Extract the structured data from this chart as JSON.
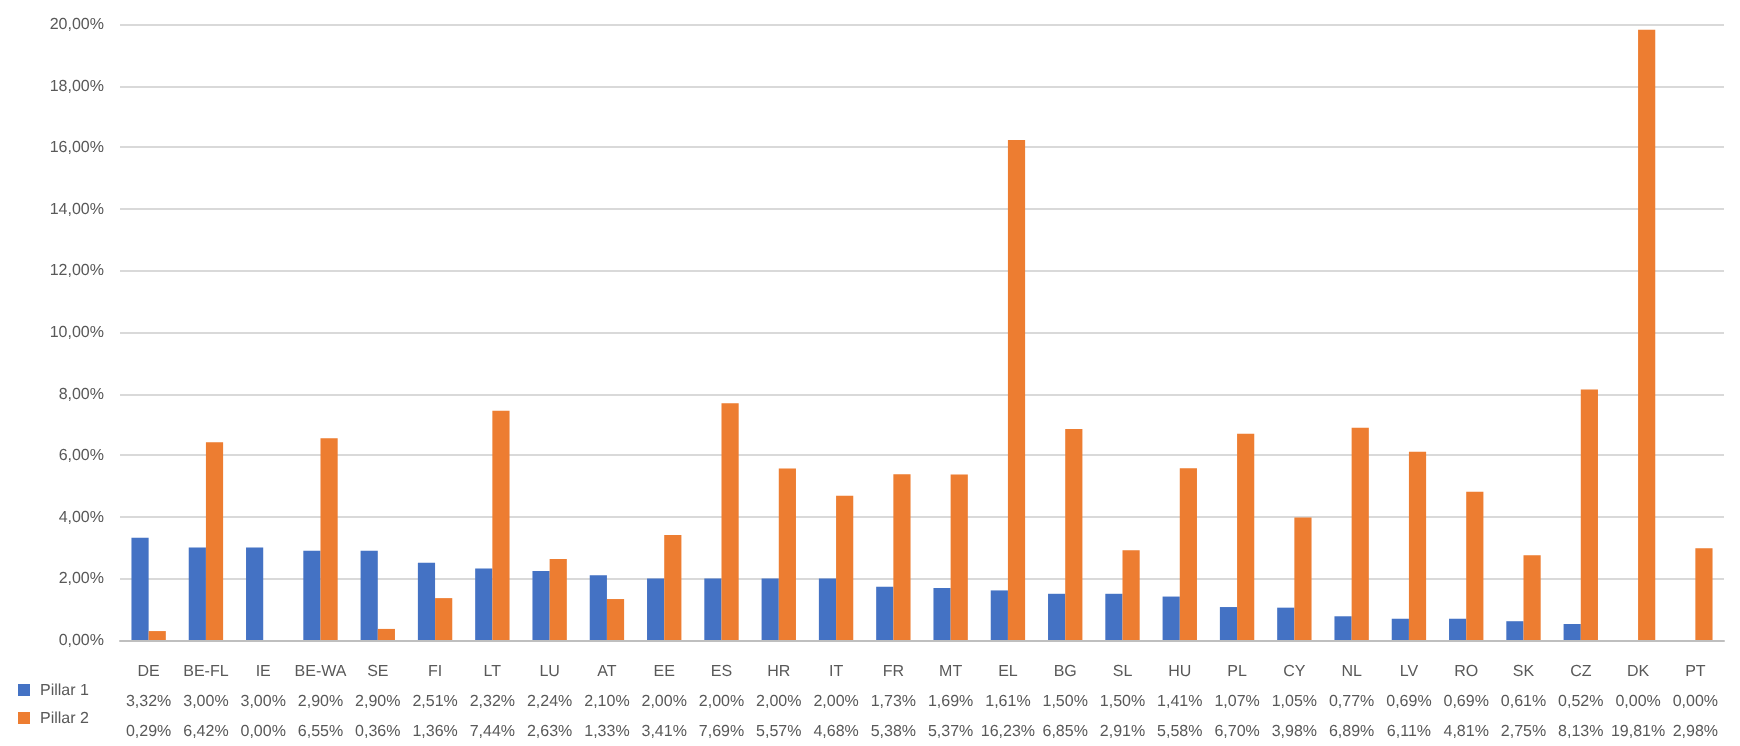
{
  "chart_data": {
    "type": "bar",
    "categories": [
      "DE",
      "BE-FL",
      "IE",
      "BE-WA",
      "SE",
      "FI",
      "LT",
      "LU",
      "AT",
      "EE",
      "ES",
      "HR",
      "IT",
      "FR",
      "MT",
      "EL",
      "BG",
      "SL",
      "HU",
      "PL",
      "CY",
      "NL",
      "LV",
      "RO",
      "SK",
      "CZ",
      "DK",
      "PT"
    ],
    "series": [
      {
        "name": "Pillar 1",
        "color": "#4472c4",
        "values": [
          3.32,
          3.0,
          3.0,
          2.9,
          2.9,
          2.51,
          2.32,
          2.24,
          2.1,
          2.0,
          2.0,
          2.0,
          2.0,
          1.73,
          1.69,
          1.61,
          1.5,
          1.5,
          1.41,
          1.07,
          1.05,
          0.77,
          0.69,
          0.69,
          0.61,
          0.52,
          0.0,
          0.0
        ],
        "value_labels": [
          "3,32%",
          "3,00%",
          "3,00%",
          "2,90%",
          "2,90%",
          "2,51%",
          "2,32%",
          "2,24%",
          "2,10%",
          "2,00%",
          "2,00%",
          "2,00%",
          "2,00%",
          "1,73%",
          "1,69%",
          "1,61%",
          "1,50%",
          "1,50%",
          "1,41%",
          "1,07%",
          "1,05%",
          "0,77%",
          "0,69%",
          "0,69%",
          "0,61%",
          "0,52%",
          "0,00%",
          "0,00%"
        ]
      },
      {
        "name": "Pillar 2",
        "color": "#ed7d31",
        "values": [
          0.29,
          6.42,
          0.0,
          6.55,
          0.36,
          1.36,
          7.44,
          2.63,
          1.33,
          3.41,
          7.69,
          5.57,
          4.68,
          5.38,
          5.37,
          16.23,
          6.85,
          2.91,
          5.58,
          6.7,
          3.98,
          6.89,
          6.11,
          4.81,
          2.75,
          8.13,
          19.81,
          2.98
        ],
        "value_labels": [
          "0,29%",
          "6,42%",
          "0,00%",
          "6,55%",
          "0,36%",
          "1,36%",
          "7,44%",
          "2,63%",
          "1,33%",
          "3,41%",
          "7,69%",
          "5,57%",
          "4,68%",
          "5,38%",
          "5,37%",
          "16,23%",
          "6,85%",
          "2,91%",
          "5,58%",
          "6,70%",
          "3,98%",
          "6,89%",
          "6,11%",
          "4,81%",
          "2,75%",
          "8,13%",
          "19,81%",
          "2,98%"
        ]
      }
    ],
    "ylim": [
      0,
      20
    ],
    "yticks": [
      {
        "value": 0,
        "label": "0,00%"
      },
      {
        "value": 2,
        "label": "2,00%"
      },
      {
        "value": 4,
        "label": "4,00%"
      },
      {
        "value": 6,
        "label": "6,00%"
      },
      {
        "value": 8,
        "label": "8,00%"
      },
      {
        "value": 10,
        "label": "10,00%"
      },
      {
        "value": 12,
        "label": "12,00%"
      },
      {
        "value": 14,
        "label": "14,00%"
      },
      {
        "value": 16,
        "label": "16,00%"
      },
      {
        "value": 18,
        "label": "18,00%"
      },
      {
        "value": 20,
        "label": "20,00%"
      }
    ],
    "grid": "y",
    "legend": "bottom left"
  }
}
